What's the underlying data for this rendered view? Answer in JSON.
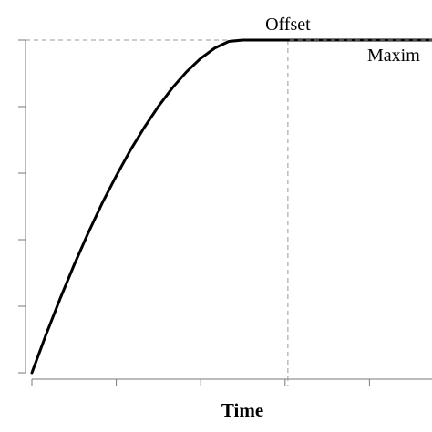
{
  "chart_data": {
    "type": "line",
    "title": "",
    "xlabel": "Time",
    "ylabel": "",
    "xlim": [
      0,
      1.5
    ],
    "ylim": [
      0,
      1
    ],
    "x_ticks": [
      0,
      0.3,
      0.6,
      0.9,
      1.2,
      1.5
    ],
    "y_ticks": [
      0,
      0.2,
      0.4,
      0.6,
      0.8,
      1
    ],
    "grid": false,
    "series": [
      {
        "color": "#000000",
        "style": "solid",
        "x": [
          0,
          0.05,
          0.1,
          0.15,
          0.2,
          0.25,
          0.3,
          0.35,
          0.4,
          0.45,
          0.5,
          0.55,
          0.6,
          0.65,
          0.7,
          0.75,
          0.8,
          0.85,
          0.875,
          0.9,
          0.95,
          1.0,
          1.05,
          1.1,
          1.15,
          1.2,
          1.25,
          1.3,
          1.35,
          1.4,
          1.45,
          1.5
        ],
        "y": [
          0,
          0.114,
          0.222,
          0.324,
          0.42,
          0.51,
          0.592,
          0.669,
          0.738,
          0.801,
          0.857,
          0.905,
          0.945,
          0.976,
          0.996,
          1.0,
          1.0,
          1.0,
          1.0,
          1.0,
          1.0,
          1.0,
          1.0,
          1.0,
          1.0,
          1.0,
          1.0,
          1.0,
          1.0,
          1.0,
          1.0,
          1.0
        ]
      }
    ],
    "reference_lines": [
      {
        "orientation": "horizontal",
        "value": 1.0,
        "style": "dashed",
        "color": "#9a9a9a"
      },
      {
        "orientation": "vertical",
        "value": 0.91,
        "style": "dashed",
        "color": "#9a9a9a"
      }
    ],
    "max_line": {
      "from_x": 0.91,
      "to_x": 1.5,
      "y": 1.0
    },
    "annotations": [
      {
        "text": "Offset",
        "x": 0.91,
        "y": 1.0,
        "position": "above"
      },
      {
        "text": "Maxim",
        "x": 1.5,
        "y": 1.0,
        "position": "below-right"
      }
    ]
  }
}
